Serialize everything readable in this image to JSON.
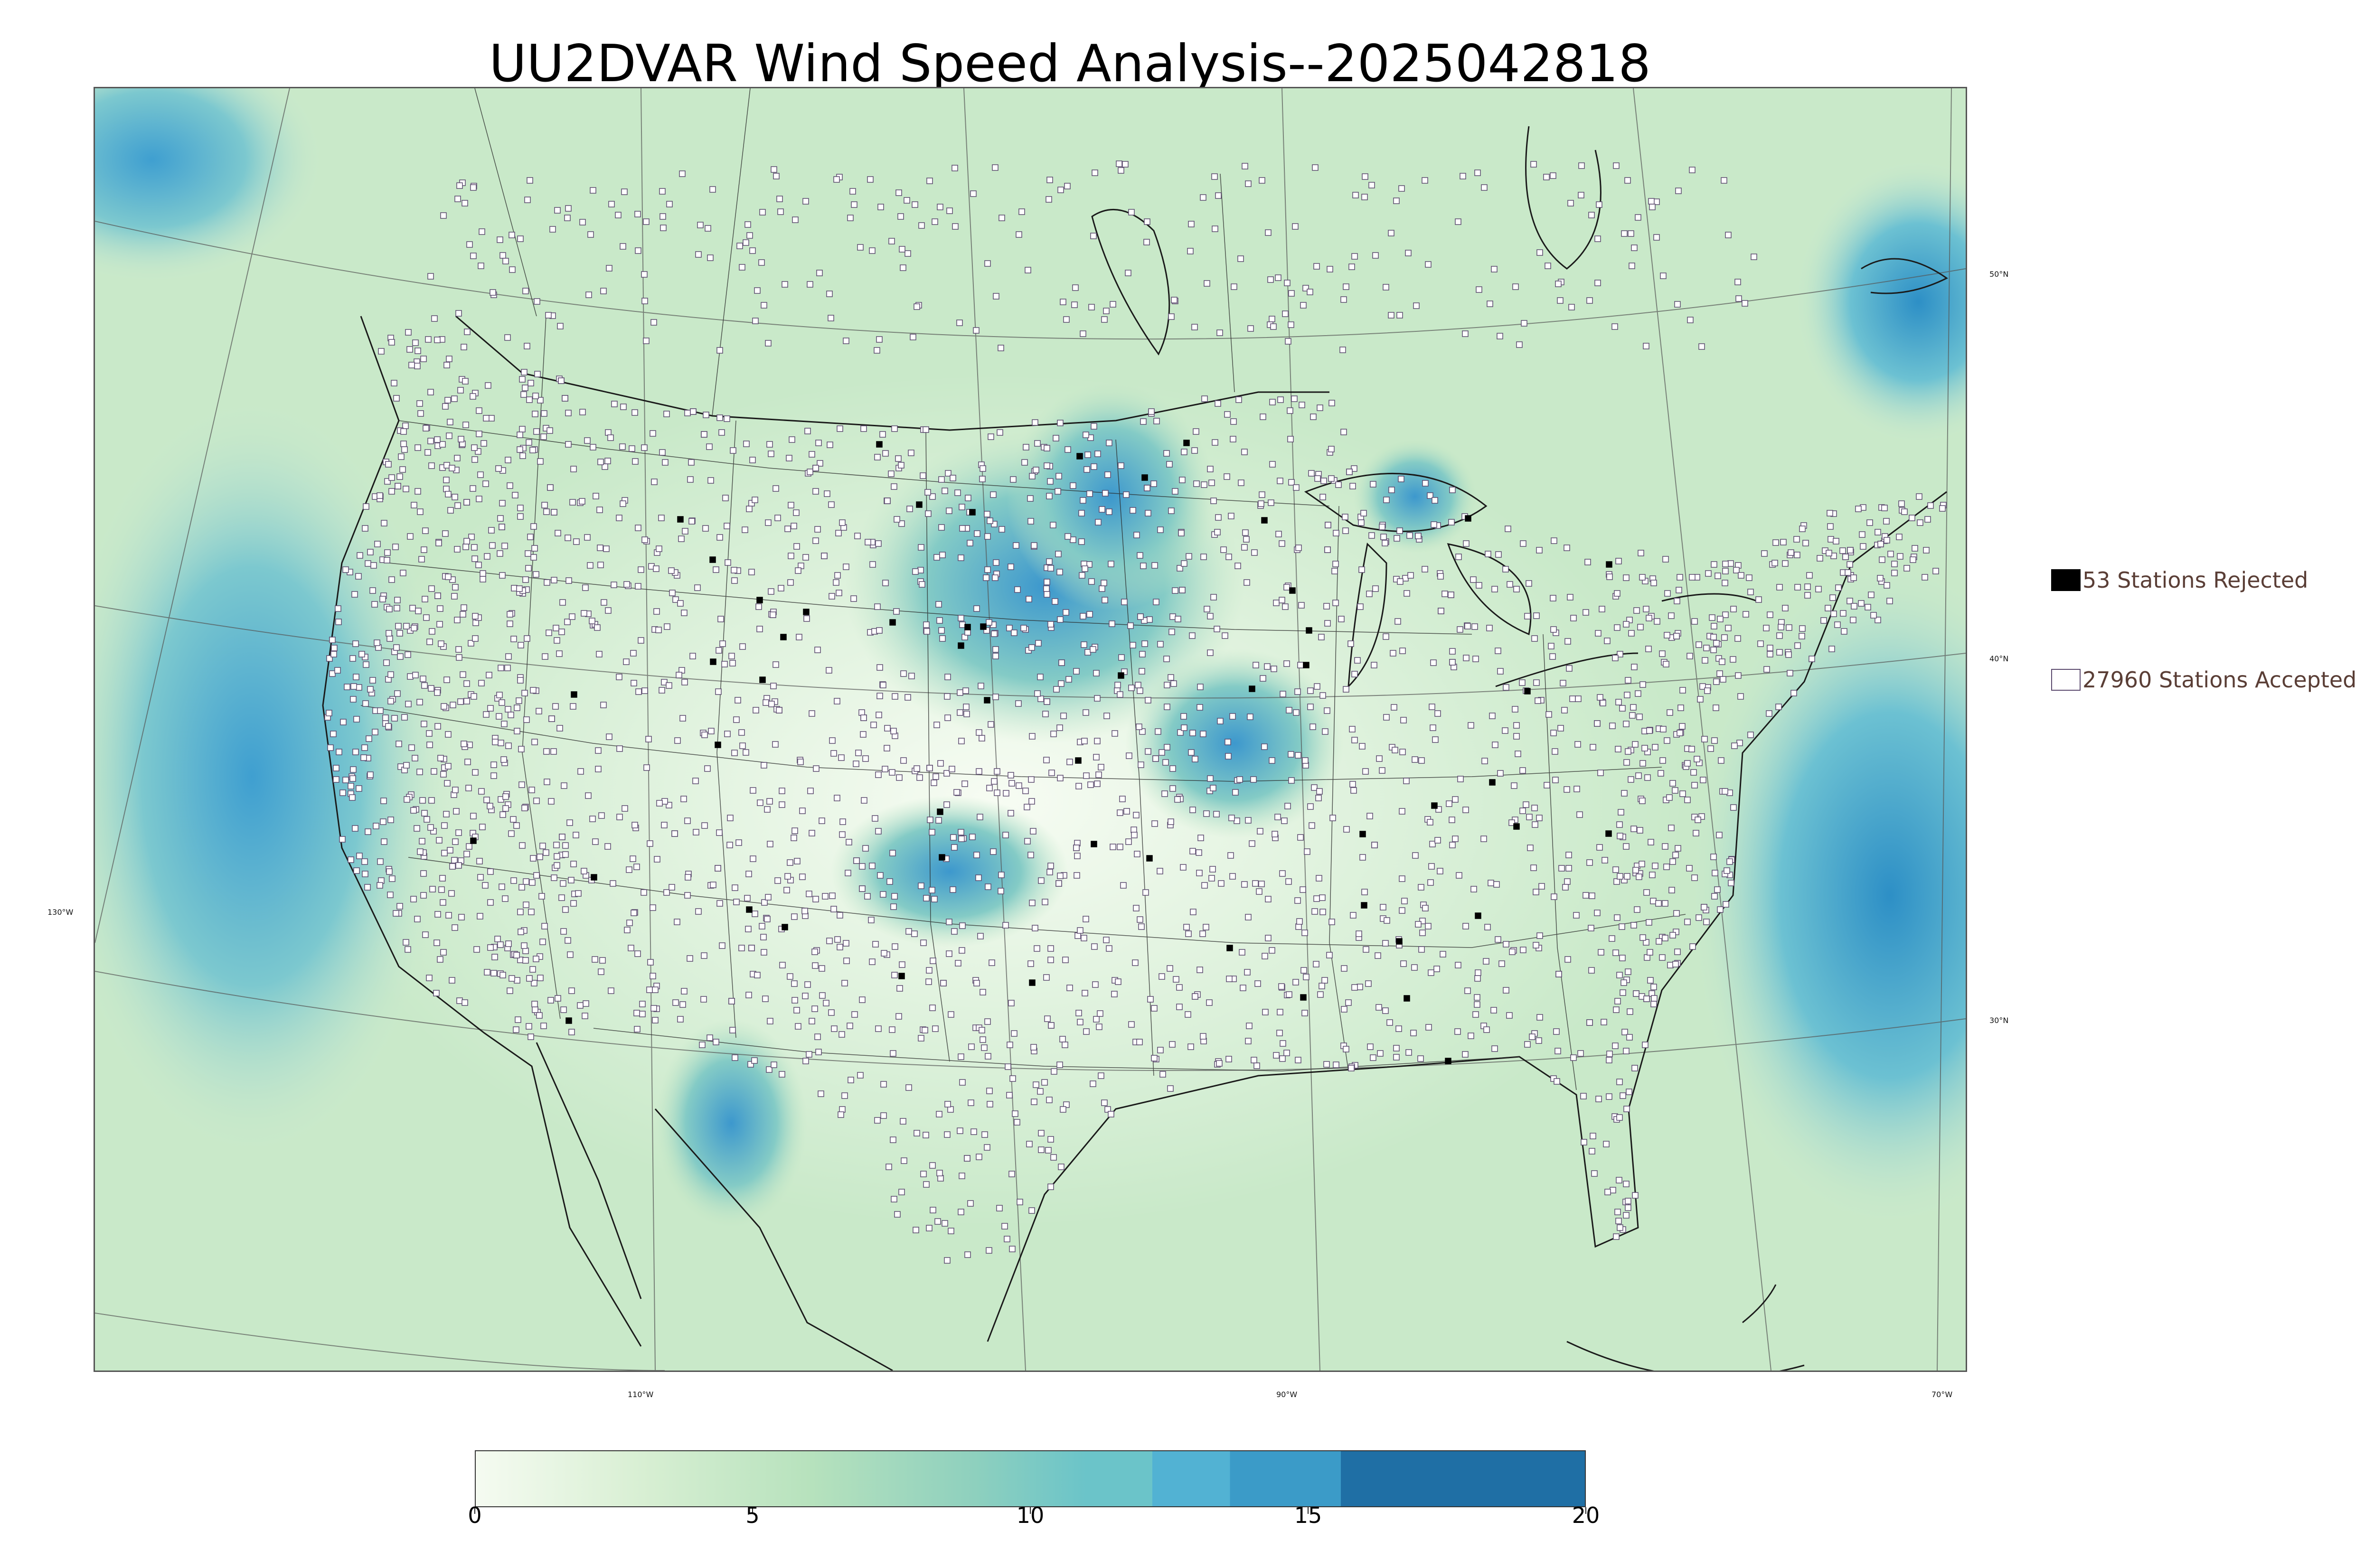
{
  "title": "UU2DVAR Wind Speed Analysis--2025042818",
  "map": {
    "type": "wind-speed-analysis",
    "region": "CONUS",
    "background": "wind-speed-shading",
    "station_markers": {
      "accepted_color": "#ffffff",
      "rejected_color": "#000000",
      "outline_color": "#5b4a6e"
    },
    "lat_labels": [
      {
        "text": "50°N"
      },
      {
        "text": "40°N"
      },
      {
        "text": "30°N"
      }
    ],
    "lon_labels": [
      {
        "text": "130°W"
      },
      {
        "text": "110°W"
      },
      {
        "text": "90°W"
      },
      {
        "text": "70°W"
      }
    ]
  },
  "legend": {
    "rejected": {
      "label": "53 Stations Rejected",
      "count": 53,
      "color": "#000000"
    },
    "accepted": {
      "label": "27960 Stations Accepted",
      "count": 27960,
      "color": "#ffffff"
    }
  },
  "colorbar": {
    "min": 0,
    "max": 20,
    "ticks": [
      {
        "value": 0,
        "label": "0"
      },
      {
        "value": 5,
        "label": "5"
      },
      {
        "value": 10,
        "label": "10"
      },
      {
        "value": 15,
        "label": "15"
      },
      {
        "value": 20,
        "label": "20"
      }
    ],
    "colors": [
      "#f5fbf1",
      "#d8efd3",
      "#b7e2bd",
      "#8ed0be",
      "#6bc4c9",
      "#52b2d3",
      "#3b9bc8",
      "#1f6fa5"
    ],
    "stops": [
      0,
      3,
      6,
      9,
      11,
      12.2,
      13.6,
      15.6,
      20
    ]
  }
}
